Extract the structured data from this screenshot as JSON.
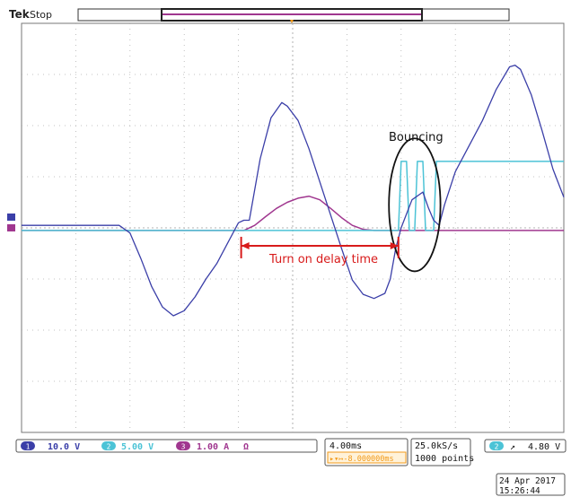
{
  "header": {
    "brand": "Tek",
    "status": "Stop"
  },
  "colors": {
    "ch1": "#3b3fa8",
    "ch2": "#4cc3d6",
    "ch3": "#a0378f",
    "annotation_red": "#d81b1b",
    "grid": "#b0b0b0",
    "trigger": "#f29a1a"
  },
  "annotations": {
    "bouncing": "Bouncing",
    "delay": "Turn on delay time"
  },
  "readouts": {
    "ch1_num": "1",
    "ch1_scale": "10.0 V",
    "ch2_num": "2",
    "ch2_scale": "5.00 V",
    "ch3_num": "3",
    "ch3_scale": "1.00 A",
    "ch3_unit": "Ω",
    "timebase": "4.00ms",
    "trigger_pos": "▸▾↦-8.000000ms",
    "sample_rate": "25.0kS/s",
    "record_len": "1000 points",
    "trig_source": "2",
    "trig_slope": "↗",
    "trig_level": "4.80 V",
    "date": "24 Apr 2017",
    "time": "15:26:44"
  },
  "chart_data": {
    "type": "line",
    "xlim": [
      -12,
      28
    ],
    "ylim": [
      -4,
      4
    ],
    "x_unit": "ms",
    "y_unit": "div",
    "grid": true,
    "series": [
      {
        "channel": "ch1",
        "x": [
          -12,
          -4.8,
          -4,
          -3.2,
          -2.4,
          -1.6,
          -0.8,
          0,
          0.8,
          1.6,
          2.4,
          3.2,
          4.0,
          4.4,
          4.8,
          5.6,
          6.4,
          7.2,
          7.6,
          8.4,
          9.2,
          10.0,
          10.8,
          11.6,
          12.4,
          13.2,
          14.0,
          14.8,
          15.2,
          15.6,
          16.0,
          16.8,
          17.6,
          18.0,
          18.4,
          18.8,
          19.2,
          20.0,
          21.0,
          22.0,
          23.0,
          24.0,
          24.4,
          24.8,
          25.6,
          26.4,
          27.2,
          28.0
        ],
        "y": [
          0.05,
          0.05,
          -0.1,
          -0.6,
          -1.15,
          -1.55,
          -1.72,
          -1.62,
          -1.35,
          -1.0,
          -0.7,
          -0.3,
          0.1,
          0.15,
          0.15,
          1.35,
          2.15,
          2.45,
          2.38,
          2.1,
          1.55,
          0.9,
          0.25,
          -0.4,
          -1.02,
          -1.3,
          -1.38,
          -1.28,
          -1.0,
          -0.4,
          0.0,
          0.55,
          0.7,
          0.4,
          0.15,
          0.05,
          0.45,
          1.1,
          1.6,
          2.1,
          2.7,
          3.15,
          3.18,
          3.1,
          2.6,
          1.9,
          1.15,
          0.6
        ]
      },
      {
        "channel": "ch2",
        "x": [
          -12,
          15.8,
          16.0,
          16.4,
          16.6,
          17.0,
          17.2,
          17.6,
          17.8,
          18.4,
          18.6,
          28.0
        ],
        "y": [
          -0.05,
          -0.05,
          1.3,
          1.3,
          -0.05,
          -0.05,
          1.3,
          1.3,
          -0.05,
          -0.05,
          1.3,
          1.3
        ]
      },
      {
        "channel": "ch3",
        "x": [
          -12,
          4.4,
          5.2,
          6.0,
          6.8,
          7.6,
          8.4,
          9.2,
          10.0,
          10.8,
          11.6,
          12.4,
          13.2,
          14.0,
          28.0
        ],
        "y": [
          -0.05,
          -0.05,
          0.05,
          0.22,
          0.38,
          0.5,
          0.58,
          0.62,
          0.55,
          0.38,
          0.2,
          0.05,
          -0.03,
          -0.05,
          -0.05
        ]
      }
    ],
    "delay_arrow": {
      "x1": 4.2,
      "x2": 15.8,
      "y": -0.35
    },
    "bouncing_circle": {
      "cx": 17.0,
      "cy": 0.45,
      "rx": 1.9,
      "ry": 1.3
    }
  }
}
